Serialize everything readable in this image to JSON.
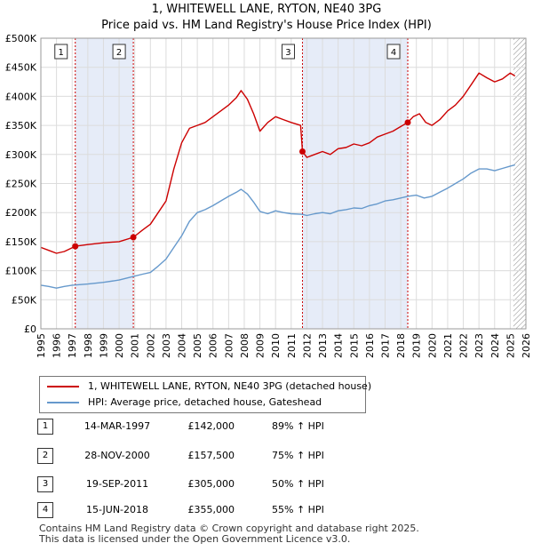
{
  "title_line1": "1, WHITEWELL LANE, RYTON, NE40 3PG",
  "title_line2": "Price paid vs. HM Land Registry's House Price Index (HPI)",
  "chart_data": {
    "type": "line",
    "xlim": [
      1995,
      2026
    ],
    "ylim": [
      0,
      500000
    ],
    "x_ticks": [
      1995,
      1996,
      1997,
      1998,
      1999,
      2000,
      2001,
      2002,
      2003,
      2004,
      2005,
      2006,
      2007,
      2008,
      2009,
      2010,
      2011,
      2012,
      2013,
      2014,
      2015,
      2016,
      2017,
      2018,
      2019,
      2020,
      2021,
      2022,
      2023,
      2024,
      2025,
      2026
    ],
    "y_ticks": [
      {
        "value": 0,
        "label": "£0"
      },
      {
        "value": 50000,
        "label": "£50K"
      },
      {
        "value": 100000,
        "label": "£100K"
      },
      {
        "value": 150000,
        "label": "£150K"
      },
      {
        "value": 200000,
        "label": "£200K"
      },
      {
        "value": 250000,
        "label": "£250K"
      },
      {
        "value": 300000,
        "label": "£300K"
      },
      {
        "value": 350000,
        "label": "£350K"
      },
      {
        "value": 400000,
        "label": "£400K"
      },
      {
        "value": 450000,
        "label": "£450K"
      },
      {
        "value": 500000,
        "label": "£500K"
      }
    ],
    "shaded_spans": [
      [
        1997.2,
        2000.91
      ],
      [
        2011.72,
        2018.45
      ]
    ],
    "hatched_from": 2025.2,
    "series": [
      {
        "name": "1, WHITEWELL LANE, RYTON, NE40 3PG (detached house)",
        "color": "#cc0000",
        "points": [
          [
            1995,
            140000
          ],
          [
            1995.5,
            135000
          ],
          [
            1996,
            130000
          ],
          [
            1996.5,
            133000
          ],
          [
            1997.2,
            142000
          ],
          [
            1998,
            145000
          ],
          [
            1999,
            148000
          ],
          [
            2000,
            150000
          ],
          [
            2000.91,
            157500
          ],
          [
            2001.5,
            170000
          ],
          [
            2002,
            180000
          ],
          [
            2002.5,
            200000
          ],
          [
            2003,
            220000
          ],
          [
            2003.5,
            275000
          ],
          [
            2004,
            320000
          ],
          [
            2004.5,
            345000
          ],
          [
            2005,
            350000
          ],
          [
            2005.5,
            355000
          ],
          [
            2006,
            365000
          ],
          [
            2006.5,
            375000
          ],
          [
            2007,
            385000
          ],
          [
            2007.5,
            398000
          ],
          [
            2007.8,
            410000
          ],
          [
            2008.2,
            395000
          ],
          [
            2008.6,
            370000
          ],
          [
            2009,
            340000
          ],
          [
            2009.5,
            355000
          ],
          [
            2010,
            365000
          ],
          [
            2010.5,
            360000
          ],
          [
            2011,
            355000
          ],
          [
            2011.6,
            350000
          ],
          [
            2011.72,
            305000
          ],
          [
            2012,
            295000
          ],
          [
            2012.5,
            300000
          ],
          [
            2013,
            305000
          ],
          [
            2013.5,
            300000
          ],
          [
            2014,
            310000
          ],
          [
            2014.5,
            312000
          ],
          [
            2015,
            318000
          ],
          [
            2015.5,
            315000
          ],
          [
            2016,
            320000
          ],
          [
            2016.5,
            330000
          ],
          [
            2017,
            335000
          ],
          [
            2017.5,
            340000
          ],
          [
            2018,
            348000
          ],
          [
            2018.45,
            355000
          ],
          [
            2018.8,
            365000
          ],
          [
            2019.2,
            370000
          ],
          [
            2019.6,
            355000
          ],
          [
            2020,
            350000
          ],
          [
            2020.5,
            360000
          ],
          [
            2021,
            375000
          ],
          [
            2021.5,
            385000
          ],
          [
            2022,
            400000
          ],
          [
            2022.5,
            420000
          ],
          [
            2023,
            440000
          ],
          [
            2023.5,
            432000
          ],
          [
            2024,
            425000
          ],
          [
            2024.5,
            430000
          ],
          [
            2025,
            440000
          ],
          [
            2025.3,
            435000
          ]
        ]
      },
      {
        "name": "HPI: Average price, detached house, Gateshead",
        "color": "#6699cc",
        "points": [
          [
            1995,
            75000
          ],
          [
            1995.5,
            73000
          ],
          [
            1996,
            70000
          ],
          [
            1996.5,
            73000
          ],
          [
            1997,
            75000
          ],
          [
            1998,
            77000
          ],
          [
            1999,
            80000
          ],
          [
            2000,
            84000
          ],
          [
            2000.91,
            90000
          ],
          [
            2001.5,
            94000
          ],
          [
            2002,
            97000
          ],
          [
            2002.5,
            108000
          ],
          [
            2003,
            120000
          ],
          [
            2003.5,
            140000
          ],
          [
            2004,
            160000
          ],
          [
            2004.5,
            185000
          ],
          [
            2005,
            200000
          ],
          [
            2005.5,
            205000
          ],
          [
            2006,
            212000
          ],
          [
            2006.5,
            220000
          ],
          [
            2007,
            228000
          ],
          [
            2007.5,
            235000
          ],
          [
            2007.8,
            240000
          ],
          [
            2008.2,
            232000
          ],
          [
            2008.6,
            218000
          ],
          [
            2009,
            202000
          ],
          [
            2009.5,
            198000
          ],
          [
            2010,
            203000
          ],
          [
            2010.5,
            200000
          ],
          [
            2011,
            198000
          ],
          [
            2011.72,
            197000
          ],
          [
            2012,
            195000
          ],
          [
            2012.5,
            198000
          ],
          [
            2013,
            200000
          ],
          [
            2013.5,
            198000
          ],
          [
            2014,
            203000
          ],
          [
            2014.5,
            205000
          ],
          [
            2015,
            208000
          ],
          [
            2015.5,
            207000
          ],
          [
            2016,
            212000
          ],
          [
            2016.5,
            215000
          ],
          [
            2017,
            220000
          ],
          [
            2017.5,
            222000
          ],
          [
            2018,
            225000
          ],
          [
            2018.45,
            228000
          ],
          [
            2019,
            230000
          ],
          [
            2019.5,
            225000
          ],
          [
            2020,
            228000
          ],
          [
            2020.5,
            235000
          ],
          [
            2021,
            242000
          ],
          [
            2021.5,
            250000
          ],
          [
            2022,
            258000
          ],
          [
            2022.5,
            268000
          ],
          [
            2023,
            275000
          ],
          [
            2023.5,
            275000
          ],
          [
            2024,
            272000
          ],
          [
            2024.5,
            276000
          ],
          [
            2025,
            280000
          ],
          [
            2025.3,
            282000
          ]
        ]
      }
    ],
    "sales": [
      {
        "n": "1",
        "x": 1997.2,
        "y": 142000
      },
      {
        "n": "2",
        "x": 2000.91,
        "y": 157500
      },
      {
        "n": "3",
        "x": 2011.72,
        "y": 305000
      },
      {
        "n": "4",
        "x": 2018.45,
        "y": 355000
      }
    ]
  },
  "legend": {
    "property_label": "1, WHITEWELL LANE, RYTON, NE40 3PG (detached house)",
    "hpi_label": "HPI: Average price, detached house, Gateshead"
  },
  "transactions": [
    {
      "n": "1",
      "date": "14-MAR-1997",
      "price": "£142,000",
      "hpi": "89% ↑ HPI"
    },
    {
      "n": "2",
      "date": "28-NOV-2000",
      "price": "£157,500",
      "hpi": "75% ↑ HPI"
    },
    {
      "n": "3",
      "date": "19-SEP-2011",
      "price": "£305,000",
      "hpi": "50% ↑ HPI"
    },
    {
      "n": "4",
      "date": "15-JUN-2018",
      "price": "£355,000",
      "hpi": "55% ↑ HPI"
    }
  ],
  "footer": "Contains HM Land Registry data © Crown copyright and database right 2025.\nThis data is licensed under the Open Government Licence v3.0."
}
